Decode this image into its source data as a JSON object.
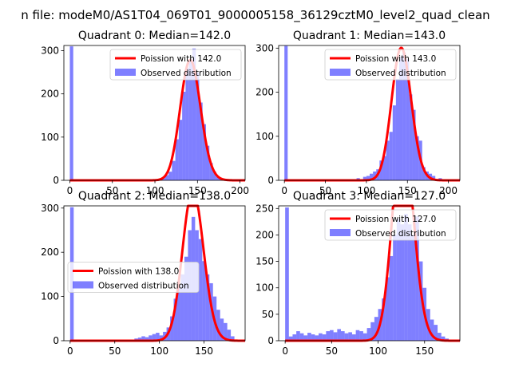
{
  "figure": {
    "suptitle": "n file: modeM0/AS1T04_069T01_9000005158_36129cztM0_level2_quad_clean"
  },
  "colors": {
    "poisson": "#ff0000",
    "observed": "#0000ff"
  },
  "chart_data": [
    {
      "type": "bar",
      "title": "Quadrant 0: Median=142.0",
      "median": 142.0,
      "bin_width": 4,
      "xlim": [
        -7,
        206
      ],
      "ylim": [
        0,
        312
      ],
      "xticks": [
        0,
        50,
        100,
        150,
        200
      ],
      "yticks": [
        0,
        100,
        200,
        300
      ],
      "legend_position": "upper-right",
      "hist_x": [
        0,
        104,
        108,
        112,
        116,
        120,
        124,
        128,
        132,
        136,
        140,
        144,
        148,
        152,
        156,
        160,
        164,
        168,
        172,
        176
      ],
      "hist_y": [
        310,
        2,
        5,
        12,
        20,
        45,
        95,
        140,
        205,
        260,
        280,
        305,
        250,
        180,
        130,
        80,
        40,
        20,
        8,
        3
      ],
      "series": [
        {
          "name": "Poission with 142.0",
          "kind": "poisson",
          "mean": 142.0
        },
        {
          "name": "Observed distribution",
          "kind": "histogram"
        }
      ]
    },
    {
      "type": "bar",
      "title": "Quadrant 1: Median=143.0",
      "median": 143.0,
      "bin_width": 4,
      "xlim": [
        -7,
        214
      ],
      "ylim": [
        0,
        306
      ],
      "xticks": [
        0,
        50,
        100,
        150,
        200
      ],
      "yticks": [
        0,
        100,
        200,
        300
      ],
      "legend_position": "upper-right",
      "hist_x": [
        0,
        88,
        96,
        100,
        104,
        108,
        112,
        116,
        120,
        124,
        128,
        132,
        136,
        140,
        144,
        148,
        152,
        156,
        160,
        164,
        168,
        172,
        176,
        180,
        188
      ],
      "hist_y": [
        305,
        5,
        8,
        10,
        15,
        20,
        25,
        45,
        55,
        90,
        110,
        170,
        230,
        280,
        290,
        275,
        195,
        160,
        100,
        90,
        30,
        20,
        15,
        10,
        5
      ],
      "series": [
        {
          "name": "Poission with 143.0",
          "kind": "poisson",
          "mean": 143.0
        },
        {
          "name": "Observed distribution",
          "kind": "histogram"
        }
      ]
    },
    {
      "type": "bar",
      "title": "Quadrant 2: Median=138.0",
      "median": 138.0,
      "bin_width": 4,
      "xlim": [
        -7,
        196
      ],
      "ylim": [
        0,
        305
      ],
      "xticks": [
        0,
        50,
        100,
        150
      ],
      "yticks": [
        0,
        100,
        200,
        300
      ],
      "legend_position": "center-left",
      "hist_x": [
        0,
        72,
        76,
        80,
        84,
        88,
        92,
        96,
        100,
        104,
        108,
        112,
        116,
        120,
        124,
        128,
        132,
        136,
        140,
        144,
        148,
        152,
        156,
        160,
        164,
        168,
        172,
        176,
        180
      ],
      "hist_y": [
        302,
        5,
        7,
        10,
        8,
        12,
        15,
        18,
        12,
        20,
        30,
        55,
        95,
        120,
        150,
        190,
        250,
        280,
        250,
        230,
        180,
        150,
        130,
        100,
        70,
        50,
        40,
        25,
        10
      ],
      "series": [
        {
          "name": "Poission with 138.0",
          "kind": "poisson",
          "mean": 138.0
        },
        {
          "name": "Observed distribution",
          "kind": "histogram"
        }
      ]
    },
    {
      "type": "bar",
      "title": "Quadrant 3: Median=127.0",
      "median": 127.0,
      "bin_width": 4,
      "xlim": [
        -7,
        188
      ],
      "ylim": [
        0,
        255
      ],
      "xticks": [
        0,
        50,
        100,
        150
      ],
      "yticks": [
        0,
        50,
        100,
        150,
        200,
        250
      ],
      "legend_position": "upper-right",
      "hist_x": [
        0,
        4,
        8,
        12,
        16,
        20,
        24,
        28,
        32,
        36,
        40,
        44,
        48,
        52,
        56,
        60,
        64,
        68,
        72,
        76,
        80,
        84,
        88,
        92,
        96,
        100,
        104,
        108,
        112,
        116,
        120,
        124,
        128,
        132,
        136,
        140,
        144,
        148,
        152,
        156,
        160,
        164,
        168,
        172
      ],
      "hist_y": [
        252,
        8,
        12,
        18,
        14,
        10,
        15,
        12,
        10,
        14,
        12,
        18,
        20,
        16,
        22,
        18,
        14,
        16,
        12,
        20,
        18,
        14,
        24,
        35,
        45,
        60,
        80,
        120,
        160,
        200,
        230,
        220,
        240,
        220,
        200,
        235,
        150,
        100,
        60,
        40,
        30,
        15,
        8,
        4
      ],
      "series": [
        {
          "name": "Poission with 127.0",
          "kind": "poisson",
          "mean": 127.0
        },
        {
          "name": "Observed distribution",
          "kind": "histogram"
        }
      ]
    }
  ]
}
